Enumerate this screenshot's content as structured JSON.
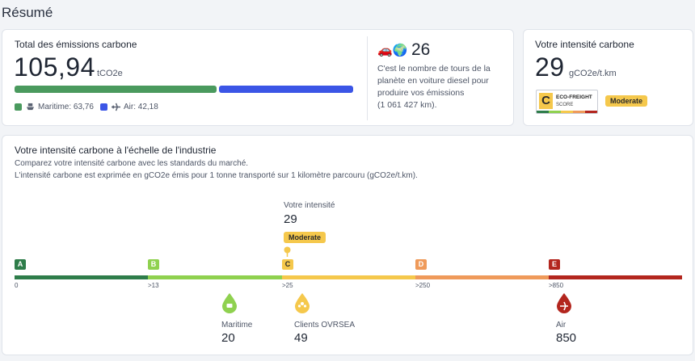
{
  "page": {
    "title": "Résumé"
  },
  "total": {
    "title": "Total des émissions carbone",
    "value": "105,94",
    "unit": "tCO2e",
    "maritime_legend": "Maritime: 63,76",
    "air_legend": "Air: 42,18",
    "maritime_share": 0.602,
    "air_share": 0.398,
    "maritime_color": "#4a9a5e",
    "air_color": "#3b55e6"
  },
  "tours": {
    "emoji": "🚗🌍",
    "value": "26",
    "line1": "C'est le nombre de tours de la",
    "line2": "planète en voiture diesel pour",
    "line3": "produire vos émissions",
    "line4": "(1 061 427 km)."
  },
  "intensity": {
    "title": "Votre intensité carbone",
    "value": "29",
    "unit": "gCO2e/t.km",
    "score_letter": "C",
    "score_name": "ECO-FREIGHT",
    "score_sub": "SCORE",
    "badge": "Moderate"
  },
  "industry": {
    "title": "Votre intensité carbone à l'échelle de l'industrie",
    "desc1": "Comparez votre intensité carbone avec les standards du marché.",
    "desc2": "L'intensité carbone est exprimée en gCO2e émis pour 1 tonne transporté sur 1 kilomètre parcouru (gCO2e/t.km).",
    "your_label": "Votre intensité",
    "your_value": "29",
    "your_badge": "Moderate",
    "grades": [
      {
        "letter": "A",
        "color": "#2e7d4a",
        "tick": "0"
      },
      {
        "letter": "B",
        "color": "#8fd14f",
        "tick": ">13"
      },
      {
        "letter": "C",
        "color": "#f5c84c",
        "tick": ">25"
      },
      {
        "letter": "D",
        "color": "#ef9a5a",
        "tick": ">250"
      },
      {
        "letter": "E",
        "color": "#b3261e",
        "tick": ">850"
      }
    ],
    "markers": [
      {
        "label": "Maritime",
        "value": "20",
        "color": "#8fd14f",
        "icon": "ship-icon"
      },
      {
        "label": "Clients OVRSEA",
        "value": "49",
        "color": "#f5c84c",
        "icon": "users-icon"
      },
      {
        "label": "Air",
        "value": "850",
        "color": "#b3261e",
        "icon": "plane-icon"
      }
    ]
  }
}
